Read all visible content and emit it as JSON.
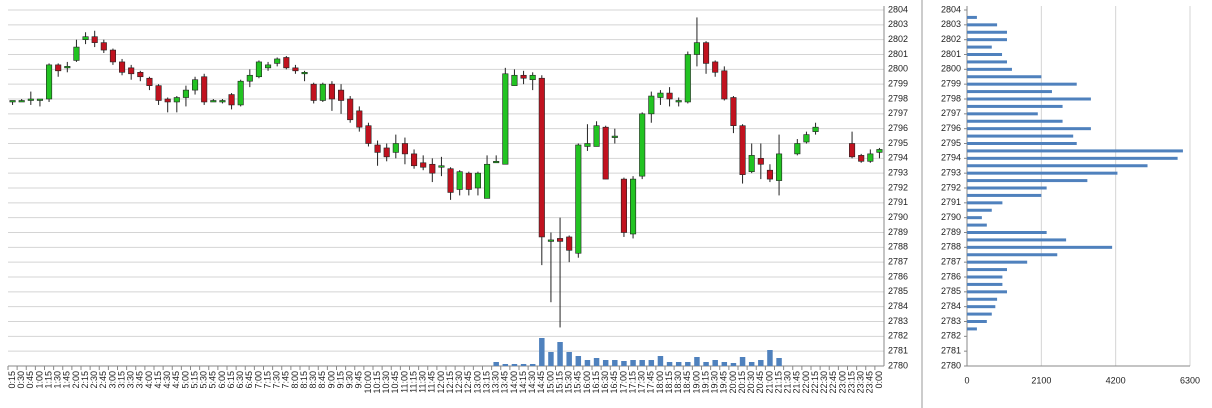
{
  "chart_data": [
    {
      "type": "candlestick",
      "categories": [
        "0:15",
        "0:30",
        "0:45",
        "1:00",
        "1:15",
        "1:30",
        "1:45",
        "2:00",
        "2:15",
        "2:30",
        "2:45",
        "3:00",
        "3:15",
        "3:30",
        "3:45",
        "4:00",
        "4:15",
        "4:30",
        "4:45",
        "5:00",
        "5:15",
        "5:30",
        "5:45",
        "6:00",
        "6:15",
        "6:30",
        "6:45",
        "7:00",
        "7:15",
        "7:30",
        "7:45",
        "8:00",
        "8:15",
        "8:30",
        "8:45",
        "9:00",
        "9:15",
        "9:30",
        "9:45",
        "10:00",
        "10:15",
        "10:30",
        "10:45",
        "11:00",
        "11:15",
        "11:30",
        "11:45",
        "12:00",
        "12:15",
        "12:30",
        "12:45",
        "13:00",
        "13:15",
        "13:30",
        "13:45",
        "14:00",
        "14:15",
        "14:30",
        "14:45",
        "15:00",
        "15:15",
        "15:30",
        "15:45",
        "16:00",
        "16:15",
        "16:30",
        "16:45",
        "17:00",
        "17:15",
        "17:30",
        "17:45",
        "18:00",
        "18:15",
        "18:30",
        "18:45",
        "19:00",
        "19:15",
        "19:30",
        "19:45",
        "20:00",
        "20:15",
        "20:30",
        "20:45",
        "21:00",
        "21:15",
        "21:30",
        "21:45",
        "22:00",
        "22:15",
        "22:30",
        "22:45",
        "23:00",
        "23:15",
        "23:30",
        "23:45",
        "0:00"
      ],
      "open": [
        2797.8,
        2797.9,
        2798,
        2798,
        2798,
        2800.3,
        2800.2,
        2800.6,
        2802,
        2802.2,
        2801.8,
        2801.3,
        2800.5,
        2800.1,
        2799.8,
        2799.4,
        2798.9,
        2798,
        2797.8,
        2798.1,
        2798.6,
        2799.5,
        2797.9,
        2797.9,
        2798.3,
        2797.6,
        2799.2,
        2799.5,
        2800.1,
        2800.4,
        2800.8,
        2800.1,
        2799.8,
        2799,
        2797.9,
        2799,
        2798.6,
        2798,
        2797.2,
        2796.2,
        2794.9,
        2794.7,
        2794.4,
        2795,
        2794.3,
        2793.7,
        2793.6,
        2793.5,
        2793.3,
        2791.9,
        2793,
        2792,
        2791.3,
        2793.8,
        2793.6,
        2798.9,
        2799.6,
        2799.3,
        2799.4,
        2788.5,
        2788.6,
        2788.7,
        2787.6,
        2794.8,
        2794.8,
        2796.1,
        2795.5,
        2792.6,
        2788.9,
        2792.8,
        2797,
        2798.1,
        2798.4,
        2797.8,
        2797.8,
        2801,
        2801.8,
        2800.5,
        2799.9,
        2798.1,
        2796.2,
        2793.1,
        2794,
        2793.2,
        2792.5,
        null,
        2794.3,
        2795.1,
        2795.8,
        null,
        null,
        null,
        2795,
        2794.2,
        2793.8,
        2794.4
      ],
      "high": [
        2797.9,
        2798,
        2798.5,
        2798,
        2800.4,
        2800.4,
        2800.5,
        2802,
        2802.5,
        2802.6,
        2802,
        2801.4,
        2800.7,
        2800.3,
        2799.9,
        2799.5,
        2799,
        2798.1,
        2798.2,
        2798.9,
        2799.5,
        2799.7,
        2798,
        2798,
        2798.4,
        2799.3,
        2800,
        2800.6,
        2800.5,
        2800.8,
        2800.9,
        2800.3,
        2799.9,
        2799.1,
        2799.1,
        2799.2,
        2799,
        2798.2,
        2797.5,
        2796.4,
        2795.2,
        2795,
        2795.6,
        2795.4,
        2794.6,
        2794.2,
        2794,
        2794.1,
        2793.4,
        2793.2,
        2793.1,
        2793.1,
        2794.2,
        2794.2,
        2800.1,
        2800,
        2799.9,
        2799.8,
        2799.6,
        2789,
        2790,
        2788.8,
        2795,
        2796.3,
        2796.5,
        2796.2,
        2796,
        2792.7,
        2792.8,
        2797.1,
        2798.5,
        2798.6,
        2798.8,
        2798.1,
        2801.2,
        2803.5,
        2801.9,
        2800.6,
        2800.2,
        2798.2,
        2796.3,
        2795,
        2795,
        2793.6,
        2795.6,
        null,
        2795.3,
        2795.8,
        2796.4,
        null,
        null,
        null,
        2795.8,
        2794.3,
        2794.6,
        2794.7
      ],
      "low": [
        2797.6,
        2797.8,
        2797.6,
        2797.5,
        2797.8,
        2799.5,
        2799.8,
        2800.5,
        2801.7,
        2801.5,
        2801.1,
        2800.3,
        2799.6,
        2799.3,
        2799.2,
        2798.6,
        2797.6,
        2797.1,
        2797.1,
        2797.5,
        2798.3,
        2797.6,
        2797.8,
        2797.7,
        2797.3,
        2797.5,
        2798.8,
        2799.4,
        2799.9,
        2800.2,
        2800,
        2799.7,
        2799.2,
        2797.7,
        2797.8,
        2797.2,
        2797,
        2796.4,
        2795.8,
        2794.8,
        2793.5,
        2793.8,
        2794,
        2793.6,
        2793.3,
        2793.2,
        2792.4,
        2792.8,
        2791.2,
        2791.5,
        2791.5,
        2791.5,
        2791.3,
        2793.7,
        2793.6,
        2798.9,
        2799,
        2798.6,
        2786.8,
        2784.3,
        2782.6,
        2787,
        2787.3,
        2794.5,
        2794.8,
        2792.6,
        2795,
        2788.7,
        2788.6,
        2792.6,
        2796.4,
        2797.6,
        2797.5,
        2797.5,
        2797.7,
        2800.2,
        2799.7,
        2799.5,
        2797.9,
        2795.7,
        2792.3,
        2793,
        2792.6,
        2792.4,
        2791.5,
        null,
        2794.2,
        2795,
        2795.6,
        null,
        null,
        null,
        2794,
        2793.7,
        2793.7,
        2794
      ],
      "close": [
        2797.9,
        2797.9,
        2798,
        2798,
        2800.3,
        2799.9,
        2800.2,
        2801.5,
        2802.2,
        2801.8,
        2801.3,
        2800.5,
        2799.8,
        2799.7,
        2799.5,
        2798.9,
        2797.9,
        2797.8,
        2798.1,
        2798.6,
        2799.3,
        2797.8,
        2797.9,
        2797.9,
        2797.6,
        2799.2,
        2799.6,
        2800.5,
        2800.3,
        2800.7,
        2800.1,
        2799.9,
        2799.8,
        2797.9,
        2799,
        2798,
        2797.9,
        2796.6,
        2796.1,
        2795,
        2794.4,
        2794.1,
        2795,
        2794.3,
        2793.5,
        2793.4,
        2793,
        2793.5,
        2791.7,
        2793.1,
        2791.9,
        2793,
        2793.6,
        2793.8,
        2799.7,
        2799.6,
        2799.4,
        2799.6,
        2788.7,
        2788.5,
        2788.4,
        2787.8,
        2794.9,
        2795,
        2796.2,
        2792.6,
        2795.5,
        2789,
        2792.6,
        2797,
        2798.2,
        2798.4,
        2798,
        2797.9,
        2801,
        2801.8,
        2800.4,
        2799.8,
        2798,
        2796.2,
        2792.9,
        2794.2,
        2793.6,
        2792.6,
        2794.3,
        null,
        2795,
        2795.6,
        2796.1,
        null,
        null,
        null,
        2794.1,
        2793.8,
        2794.3,
        2794.6
      ],
      "volume": [
        null,
        null,
        null,
        null,
        null,
        null,
        null,
        null,
        null,
        null,
        null,
        null,
        null,
        null,
        null,
        null,
        null,
        null,
        null,
        null,
        null,
        null,
        null,
        null,
        null,
        null,
        null,
        null,
        null,
        null,
        null,
        null,
        null,
        null,
        null,
        null,
        null,
        null,
        null,
        null,
        null,
        null,
        null,
        null,
        null,
        null,
        null,
        null,
        null,
        null,
        null,
        null,
        null,
        40,
        20,
        20,
        20,
        20,
        280,
        140,
        240,
        140,
        100,
        60,
        80,
        60,
        60,
        50,
        60,
        60,
        60,
        100,
        40,
        40,
        40,
        90,
        40,
        60,
        40,
        30,
        90,
        40,
        60,
        160,
        80,
        null,
        null,
        null,
        null,
        null,
        null,
        null,
        null,
        null,
        null,
        null
      ],
      "ylim": [
        2780,
        2804
      ],
      "yticks": [
        2780,
        2781,
        2782,
        2783,
        2784,
        2785,
        2786,
        2787,
        2788,
        2789,
        2790,
        2791,
        2792,
        2793,
        2794,
        2795,
        2796,
        2797,
        2798,
        2799,
        2800,
        2801,
        2802,
        2803,
        2804
      ],
      "grid": true,
      "up_color": "#22c322",
      "down_color": "#c1121f",
      "volume_color": "#4f81bd"
    },
    {
      "type": "barh",
      "y": [
        2803.5,
        2803,
        2802.5,
        2802,
        2801.5,
        2801,
        2800.5,
        2800,
        2799.5,
        2799,
        2798.5,
        2798,
        2797.5,
        2797,
        2796.5,
        2796,
        2795.5,
        2795,
        2794.5,
        2794,
        2793.5,
        2793,
        2792.5,
        2792,
        2791.5,
        2791,
        2790.5,
        2790,
        2789.5,
        2789,
        2788.5,
        2788,
        2787.5,
        2787,
        2786.5,
        2786,
        2785.5,
        2785,
        2784.5,
        2784,
        2783.5,
        2783,
        2782.5
      ],
      "values": [
        280,
        850,
        1130,
        1130,
        700,
        990,
        1130,
        1270,
        2100,
        3100,
        2400,
        3500,
        2700,
        2000,
        2700,
        3500,
        3000,
        3100,
        6100,
        5950,
        5100,
        4250,
        3400,
        2250,
        2100,
        1000,
        700,
        420,
        560,
        2250,
        2800,
        4100,
        2550,
        1700,
        1130,
        1000,
        1000,
        1130,
        850,
        800,
        700,
        560,
        280
      ],
      "xlim": [
        0,
        6300
      ],
      "xticks": [
        0,
        2100,
        4200,
        6300
      ],
      "ylim": [
        2780,
        2804
      ],
      "yticks": [
        2780,
        2781,
        2782,
        2783,
        2784,
        2785,
        2786,
        2787,
        2788,
        2789,
        2790,
        2791,
        2792,
        2793,
        2794,
        2795,
        2796,
        2797,
        2798,
        2799,
        2800,
        2801,
        2802,
        2803,
        2804
      ],
      "grid": true,
      "color": "#4f81bd"
    }
  ]
}
